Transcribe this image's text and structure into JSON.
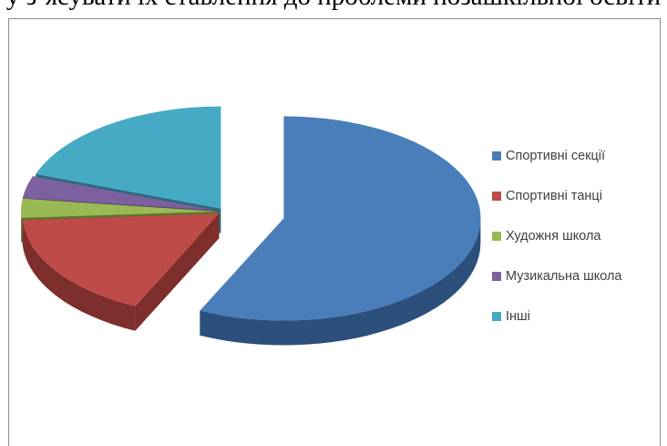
{
  "top_text": "у з’ясувати їх ставлення до проблеми позашкільної освіти",
  "chart_data": {
    "type": "pie",
    "title": "",
    "slices": [
      {
        "label": "Спортивні секції",
        "value": 57,
        "color": "#4a7ebb",
        "side": "#2c4f7b"
      },
      {
        "label": "Спортивні танці",
        "value": 17,
        "color": "#be4b48",
        "side": "#7e2e2c"
      },
      {
        "label": "Художня школа",
        "value": 3,
        "color": "#98b954",
        "side": "#5e7530"
      },
      {
        "label": "Музикальна школа",
        "value": 3.5,
        "color": "#7d60a0",
        "side": "#4e3a66"
      },
      {
        "label": "Інші",
        "value": 19.5,
        "color": "#46aac5",
        "side": "#2a6b7e"
      }
    ],
    "legend_position": "right",
    "style": "3d-exploded"
  }
}
